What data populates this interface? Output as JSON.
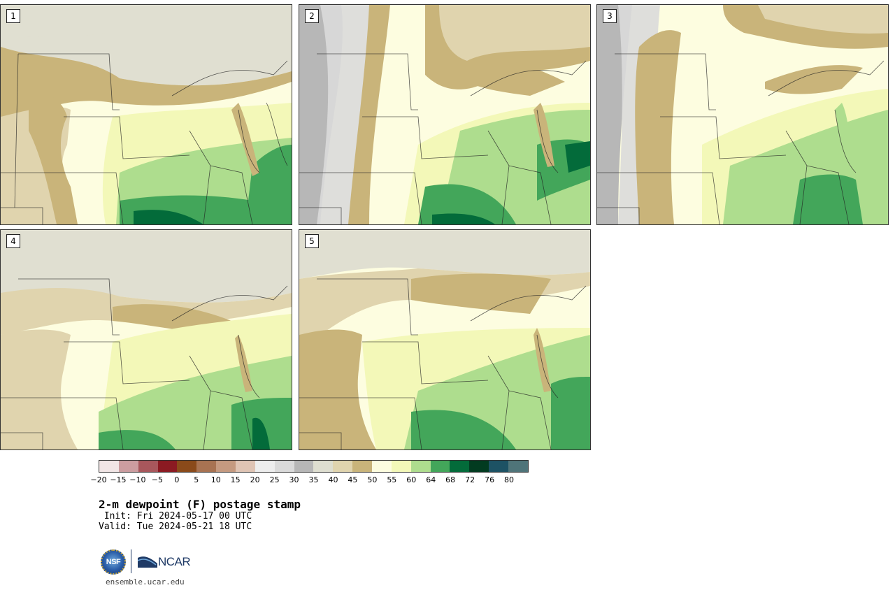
{
  "panels": [
    {
      "label": "1"
    },
    {
      "label": "2"
    },
    {
      "label": "3"
    },
    {
      "label": "4"
    },
    {
      "label": "5"
    }
  ],
  "colorbar": {
    "colors": [
      "#f2e6e6",
      "#cc9da0",
      "#a8575c",
      "#8b1a22",
      "#8a4a1a",
      "#a87352",
      "#c59a80",
      "#dfc4b4",
      "#ededed",
      "#dadada",
      "#b7b7b7",
      "#deded0",
      "#e0d4ae",
      "#c9b47a",
      "#fdfde0",
      "#f3f8b8",
      "#aedd8e",
      "#43a65a",
      "#036b3a",
      "#023b20",
      "#1d5264",
      "#4f7479"
    ],
    "tick_labels": [
      "−20",
      "−15",
      "−10",
      "−5",
      "0",
      "5",
      "10",
      "15",
      "20",
      "25",
      "30",
      "35",
      "40",
      "45",
      "50",
      "55",
      "60",
      "64",
      "68",
      "72",
      "76",
      "80"
    ]
  },
  "title": "2-m dewpoint (F) postage stamp",
  "init_line": " Init: Fri 2024-05-17 00 UTC",
  "valid_line": "Valid: Tue 2024-05-21 18 UTC",
  "logos": {
    "nsf_text": "NSF",
    "ncar_text": "NCAR"
  },
  "site": "ensemble.ucar.edu"
}
